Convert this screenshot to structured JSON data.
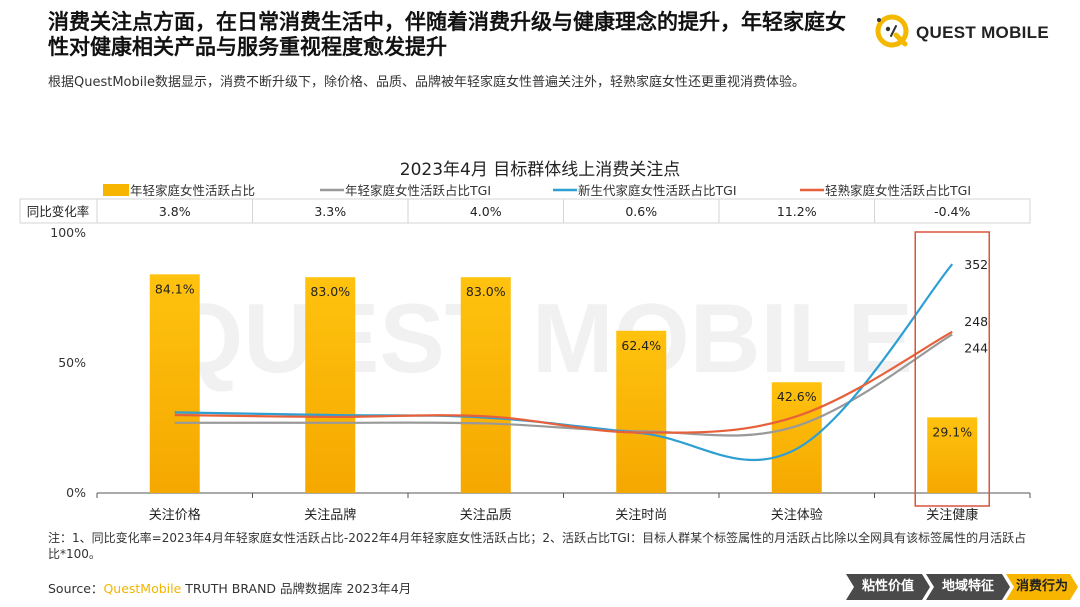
{
  "header": {
    "title": "消费关注点方面，在日常消费生活中，伴随着消费升级与健康理念的提升，年轻家庭女性对健康相关产品与服务重视程度愈发提升",
    "subtitle": "根据QuestMobile数据显示，消费不断升级下，除价格、品质、品牌被年轻家庭女性普遍关注外，轻熟家庭女性还更重视消费体验。",
    "logo_text": "QUEST MOBILE",
    "watermark_text": "QUEST MOBILE"
  },
  "chart_data": {
    "type": "bar",
    "title": "2023年4月 目标群体线上消费关注点",
    "categories": [
      "关注价格",
      "关注品牌",
      "关注品质",
      "关注时尚",
      "关注体验",
      "关注健康"
    ],
    "ylim": [
      0,
      100
    ],
    "yticks": [
      "0%",
      "50%",
      "100%"
    ],
    "bar_series": {
      "name": "年轻家庭女性活跃占比",
      "values": [
        84.1,
        83.0,
        83.0,
        62.4,
        42.6,
        29.1
      ],
      "labels": [
        "84.1%",
        "83.0%",
        "83.0%",
        "62.4%",
        "42.6%",
        "29.1%"
      ],
      "color": "#f7b500"
    },
    "line_series": [
      {
        "name": "年轻家庭女性活跃占比TGI",
        "color": "#999999",
        "values": [
          108,
          108,
          107,
          95,
          103,
          244
        ],
        "end_label": "244"
      },
      {
        "name": "新生代家庭女性活跃占比TGI",
        "color": "#2e9fd3",
        "values": [
          124,
          120,
          116,
          92,
          68,
          352
        ],
        "end_label": "352"
      },
      {
        "name": "轻熟家庭女性活跃占比TGI",
        "color": "#e8603a",
        "values": [
          120,
          117,
          118,
          93,
          118,
          248
        ],
        "end_label": "248"
      }
    ],
    "legend_position": "top",
    "change_row": {
      "header": "同比变化率",
      "values": [
        "3.8%",
        "3.3%",
        "4.0%",
        "0.6%",
        "11.2%",
        "-0.4%"
      ]
    },
    "highlight_category": "关注健康",
    "highlight_color": "#d9543a"
  },
  "footer": {
    "note": "注：1、同比变化率=2023年4月年轻家庭女性活跃占比-2022年4月年轻家庭女性活跃占比；2、活跃占比TGI：目标人群某个标签属性的月活跃占比除以全网具有该标签属性的月活跃占比*100。",
    "source_prefix": "Source：",
    "source_brand": "QuestMobile",
    "source_rest": " TRUTH BRAND 品牌数据库 2023年4月",
    "breadcrumbs": [
      "粘性价值",
      "地域特征",
      "消费行为"
    ],
    "active_breadcrumb": "消费行为"
  }
}
